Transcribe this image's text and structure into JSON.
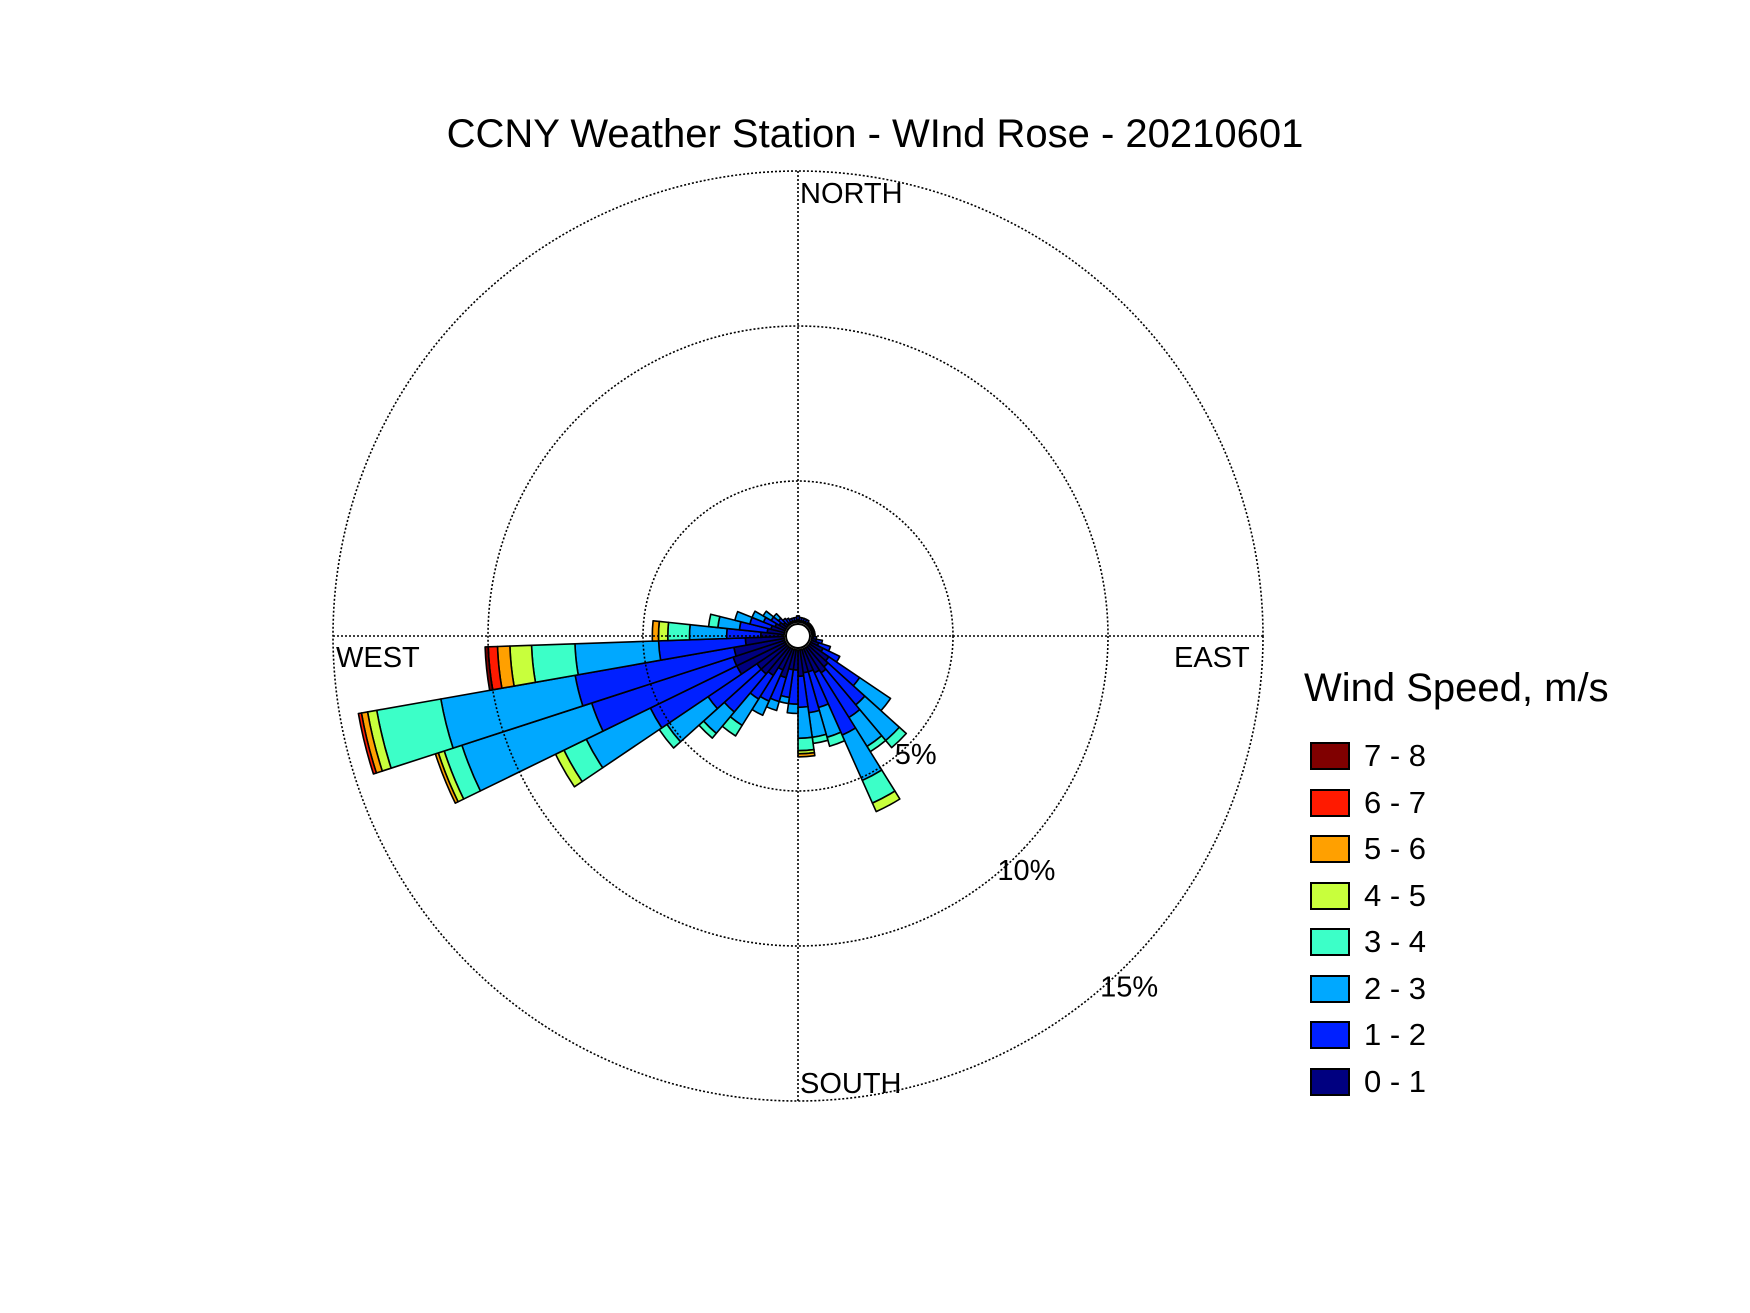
{
  "chart_data": {
    "type": "wind-rose",
    "title": "CCNY Weather Station - WInd Rose - 20210601",
    "directions": {
      "north": "NORTH",
      "south": "SOUTH",
      "east": "EAST",
      "west": "WEST"
    },
    "ring_labels": [
      "5%",
      "10%",
      "15%"
    ],
    "rings": [
      5,
      10,
      15
    ],
    "max": 15,
    "legend_title": "Wind Speed, m/s",
    "bins": [
      {
        "label": "7 - 8",
        "color": "#800000"
      },
      {
        "label": "6 - 7",
        "color": "#ff1a00"
      },
      {
        "label": "5 - 6",
        "color": "#ffa000"
      },
      {
        "label": "4 - 5",
        "color": "#c8ff3c"
      },
      {
        "label": "3 - 4",
        "color": "#3cffc8"
      },
      {
        "label": "2 - 3",
        "color": "#00a8ff"
      },
      {
        "label": "1 - 2",
        "color": "#0020ff"
      },
      {
        "label": "0 - 1",
        "color": "#000080"
      }
    ],
    "speed_order": [
      "0 - 1",
      "1 - 2",
      "2 - 3",
      "3 - 4",
      "4 - 5",
      "5 - 6",
      "6 - 7",
      "7 - 8"
    ],
    "sector_width_deg": 8,
    "calm_radius_pct": 0.45,
    "sectors": [
      {
        "dir": 120,
        "cum": [
          0.9,
          1.5
        ]
      },
      {
        "dir": 128,
        "cum": [
          1.2,
          2.4,
          3.6
        ]
      },
      {
        "dir": 136,
        "cum": [
          1.3,
          2.9,
          4.4,
          4.7
        ]
      },
      {
        "dir": 144,
        "cum": [
          1.4,
          3.1,
          4.2,
          4.4
        ]
      },
      {
        "dir": 152,
        "cum": [
          1.3,
          3.5,
          5.1,
          5.9,
          6.2
        ]
      },
      {
        "dir": 160,
        "cum": [
          1.2,
          2.4,
          3.4,
          3.7
        ]
      },
      {
        "dir": 168,
        "cum": [
          1.2,
          2.5,
          3.3,
          3.5
        ]
      },
      {
        "dir": 176,
        "cum": [
          1.3,
          2.3,
          3.3,
          3.7,
          3.8,
          3.9
        ]
      },
      {
        "dir": 184,
        "cum": [
          1.1,
          2.2,
          2.5
        ]
      },
      {
        "dir": 192,
        "cum": [
          1.1,
          2.0,
          2.2
        ]
      },
      {
        "dir": 200,
        "cum": [
          1.4,
          2.2,
          2.5
        ]
      },
      {
        "dir": 208,
        "cum": [
          1.2,
          2.3,
          2.8
        ]
      },
      {
        "dir": 216,
        "cum": [
          1.5,
          2.4,
          3.4,
          3.8
        ]
      },
      {
        "dir": 224,
        "cum": [
          1.6,
          3.2,
          4.1,
          4.3
        ]
      },
      {
        "dir": 232,
        "cum": [
          1.6,
          3.5,
          5.1,
          5.4
        ]
      },
      {
        "dir": 240,
        "cum": [
          2.2,
          5.3,
          7.6,
          8.4,
          8.7
        ]
      },
      {
        "dir": 248,
        "cum": [
          2.2,
          7.0,
          11.4,
          12.0,
          12.2,
          12.3
        ]
      },
      {
        "dir": 256,
        "cum": [
          2.1,
          7.3,
          11.7,
          13.8,
          14.1,
          14.3,
          14.4
        ]
      },
      {
        "dir": 264,
        "cum": [
          1.7,
          4.5,
          7.2,
          8.6,
          9.3,
          9.7,
          10.0,
          10.1
        ]
      },
      {
        "dir": 272,
        "cum": [
          1.2,
          2.3,
          3.5,
          4.2,
          4.5,
          4.7
        ]
      },
      {
        "dir": 280,
        "cum": [
          1.0,
          1.9,
          2.6,
          2.9
        ]
      },
      {
        "dir": 288,
        "cum": [
          0.9,
          1.6,
          2.1
        ]
      },
      {
        "dir": 296,
        "cum": [
          0.8,
          1.2,
          1.6
        ]
      },
      {
        "dir": 304,
        "cum": [
          0.7,
          1.0,
          1.3
        ]
      },
      {
        "dir": 312,
        "cum": [
          0.6,
          0.8,
          1.0
        ]
      },
      {
        "dir": 320,
        "cum": [
          0.5,
          0.7
        ]
      },
      {
        "dir": 328,
        "cum": [
          0.5,
          0.65
        ]
      },
      {
        "dir": 336,
        "cum": [
          0.5,
          0.6
        ]
      },
      {
        "dir": 344,
        "cum": [
          0.5,
          0.6
        ]
      },
      {
        "dir": 352,
        "cum": [
          0.5,
          0.6
        ]
      },
      {
        "dir": 0,
        "cum": [
          0.5,
          0.65
        ]
      },
      {
        "dir": 8,
        "cum": [
          0.5,
          0.6
        ]
      },
      {
        "dir": 16,
        "cum": [
          0.5,
          0.6
        ]
      },
      {
        "dir": 24,
        "cum": [
          0.5,
          0.6
        ]
      },
      {
        "dir": 32,
        "cum": [
          0.5,
          0.6
        ]
      },
      {
        "dir": 40,
        "cum": [
          0.5,
          0.55
        ]
      },
      {
        "dir": 48,
        "cum": [
          0.5,
          0.55
        ]
      },
      {
        "dir": 56,
        "cum": [
          0.5,
          0.55
        ]
      },
      {
        "dir": 64,
        "cum": [
          0.5,
          0.55
        ]
      },
      {
        "dir": 72,
        "cum": [
          0.5,
          0.55
        ]
      },
      {
        "dir": 80,
        "cum": [
          0.5,
          0.55
        ]
      },
      {
        "dir": 88,
        "cum": [
          0.5,
          0.55
        ]
      },
      {
        "dir": 96,
        "cum": [
          0.5,
          0.6
        ]
      },
      {
        "dir": 104,
        "cum": [
          0.6,
          0.8
        ]
      },
      {
        "dir": 112,
        "cum": [
          0.7,
          1.1
        ]
      }
    ]
  }
}
